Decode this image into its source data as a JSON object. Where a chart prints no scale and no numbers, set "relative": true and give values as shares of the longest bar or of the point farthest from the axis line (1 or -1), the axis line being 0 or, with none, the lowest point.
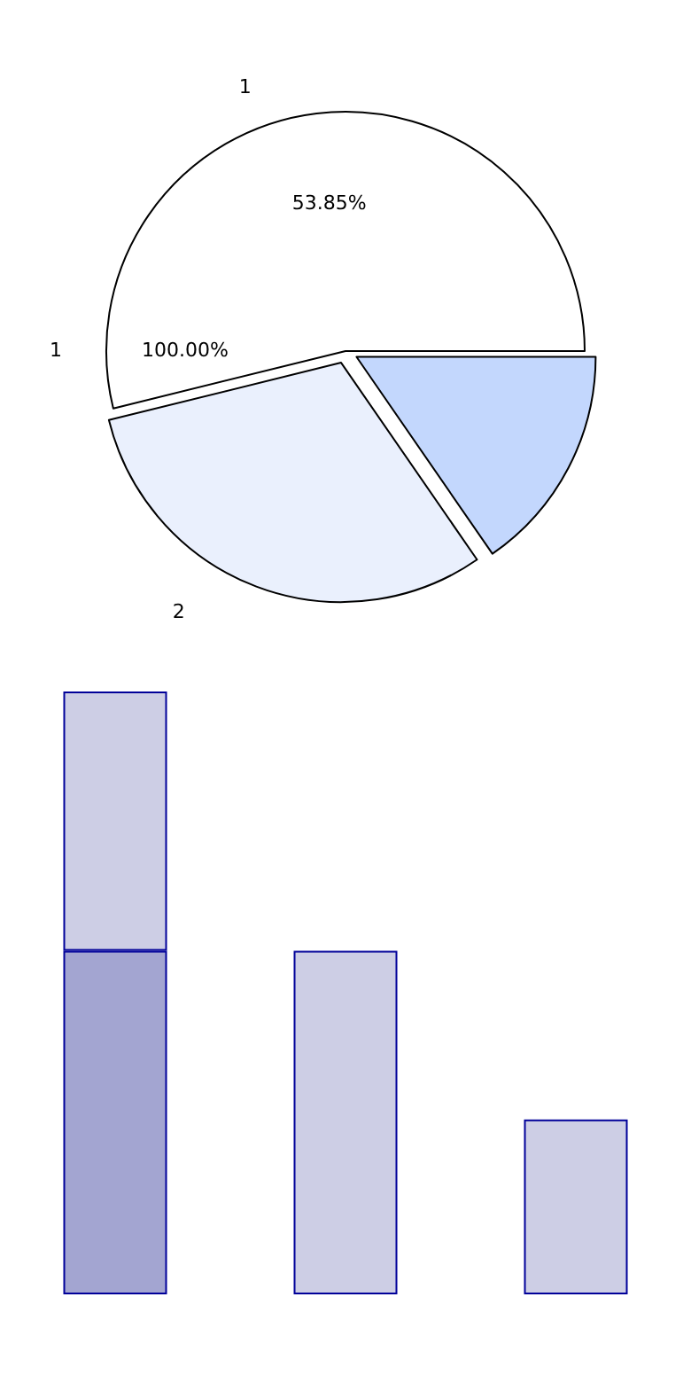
{
  "chart_data": [
    {
      "type": "pie",
      "categories": [
        "1",
        "2",
        null
      ],
      "values": [
        53.85,
        30.77,
        15.38
      ],
      "colors": [
        "#ffffff",
        "#eaf0fd",
        "#c3d7fd"
      ],
      "value_labels": [
        "53.85%",
        null,
        null
      ],
      "annotations": [
        "1",
        "100.00%"
      ]
    },
    {
      "type": "bar",
      "relative": true,
      "stacked": true,
      "categories": [
        null,
        null,
        null
      ],
      "series": [
        {
          "color": "#a3a5d1",
          "values": [
            0.57,
            null,
            null
          ]
        },
        {
          "color": "#cdcee5",
          "values": [
            0.43,
            0.57,
            0.29
          ]
        }
      ]
    }
  ]
}
